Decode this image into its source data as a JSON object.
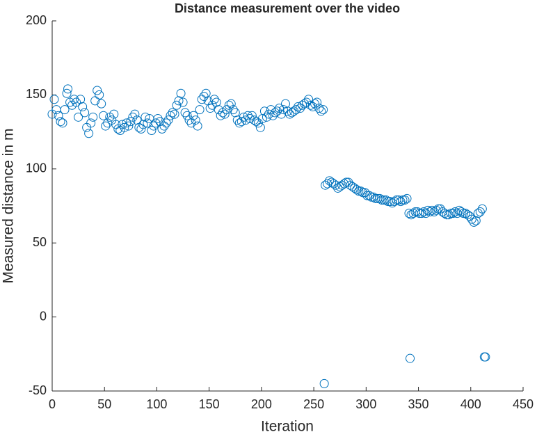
{
  "chart_data": {
    "type": "scatter",
    "title": "Distance measurement over the video",
    "xlabel": "Iteration",
    "ylabel": "Measured distance in m",
    "xlim": [
      0,
      450
    ],
    "ylim": [
      -50,
      200
    ],
    "xticks": [
      0,
      50,
      100,
      150,
      200,
      250,
      300,
      350,
      400,
      450
    ],
    "yticks": [
      -50,
      0,
      50,
      100,
      150,
      200
    ],
    "grid": false,
    "marker": "open-circle",
    "series": [
      {
        "color": "#0072bd",
        "x": [
          0,
          2,
          4,
          6,
          8,
          10,
          12,
          14,
          15,
          17,
          19,
          21,
          23,
          25,
          27,
          29,
          31,
          33,
          35,
          37,
          39,
          41,
          43,
          45,
          47,
          49,
          51,
          53,
          55,
          57,
          59,
          61,
          63,
          65,
          67,
          69,
          71,
          73,
          75,
          77,
          79,
          81,
          83,
          85,
          87,
          89,
          91,
          93,
          95,
          97,
          99,
          101,
          103,
          105,
          107,
          109,
          111,
          113,
          115,
          117,
          119,
          121,
          123,
          125,
          127,
          129,
          131,
          133,
          135,
          137,
          139,
          141,
          143,
          145,
          147,
          149,
          151,
          153,
          155,
          157,
          159,
          161,
          163,
          165,
          167,
          169,
          171,
          173,
          175,
          177,
          179,
          181,
          183,
          185,
          187,
          189,
          191,
          193,
          195,
          197,
          199,
          201,
          203,
          205,
          207,
          209,
          211,
          213,
          215,
          217,
          219,
          221,
          223,
          225,
          227,
          229,
          231,
          233,
          235,
          237,
          239,
          241,
          243,
          245,
          247,
          249,
          251,
          253,
          255,
          257,
          259,
          260,
          261,
          263,
          265,
          267,
          269,
          271,
          273,
          275,
          277,
          279,
          281,
          283,
          285,
          287,
          289,
          291,
          293,
          295,
          297,
          299,
          301,
          303,
          305,
          307,
          309,
          311,
          313,
          315,
          317,
          319,
          321,
          323,
          325,
          327,
          329,
          331,
          333,
          335,
          337,
          339,
          341,
          342,
          343,
          345,
          347,
          349,
          351,
          353,
          355,
          357,
          359,
          361,
          363,
          365,
          367,
          369,
          371,
          373,
          375,
          377,
          379,
          381,
          383,
          385,
          387,
          389,
          391,
          393,
          395,
          397,
          399,
          401,
          403,
          405,
          407,
          409,
          411,
          413,
          414
        ],
        "values": [
          137,
          147,
          140,
          136,
          132,
          131,
          140,
          151,
          154,
          145,
          143,
          147,
          145,
          135,
          147,
          142,
          138,
          128,
          124,
          131,
          135,
          146,
          153,
          150,
          144,
          136,
          129,
          131,
          135,
          133,
          137,
          130,
          127,
          126,
          130,
          128,
          131,
          129,
          132,
          135,
          137,
          133,
          128,
          127,
          130,
          135,
          131,
          134,
          126,
          129,
          131,
          134,
          132,
          127,
          129,
          131,
          133,
          136,
          138,
          137,
          143,
          146,
          151,
          145,
          138,
          136,
          133,
          131,
          136,
          133,
          129,
          140,
          147,
          149,
          151,
          146,
          141,
          143,
          147,
          145,
          140,
          136,
          138,
          137,
          140,
          143,
          144,
          140,
          138,
          133,
          131,
          132,
          135,
          133,
          136,
          134,
          136,
          133,
          132,
          131,
          128,
          134,
          139,
          135,
          137,
          140,
          136,
          138,
          139,
          141,
          137,
          140,
          144,
          139,
          137,
          138,
          139,
          140,
          142,
          141,
          143,
          144,
          145,
          147,
          143,
          142,
          144,
          145,
          141,
          139,
          140,
          -45,
          89,
          90,
          92,
          91,
          90,
          89,
          87,
          88,
          89,
          90,
          91,
          91,
          89,
          88,
          87,
          86,
          85,
          85,
          84,
          84,
          82,
          82,
          81,
          81,
          80,
          80,
          80,
          79,
          79,
          79,
          78,
          78,
          77,
          78,
          79,
          79,
          78,
          79,
          79,
          80,
          70,
          -28,
          69,
          70,
          71,
          71,
          70,
          70,
          71,
          70,
          72,
          71,
          72,
          71,
          72,
          73,
          73,
          71,
          70,
          69,
          69,
          70,
          70,
          71,
          70,
          72,
          71,
          70,
          70,
          69,
          68,
          66,
          64,
          65,
          70,
          71,
          73,
          -27,
          -27
        ]
      }
    ]
  }
}
